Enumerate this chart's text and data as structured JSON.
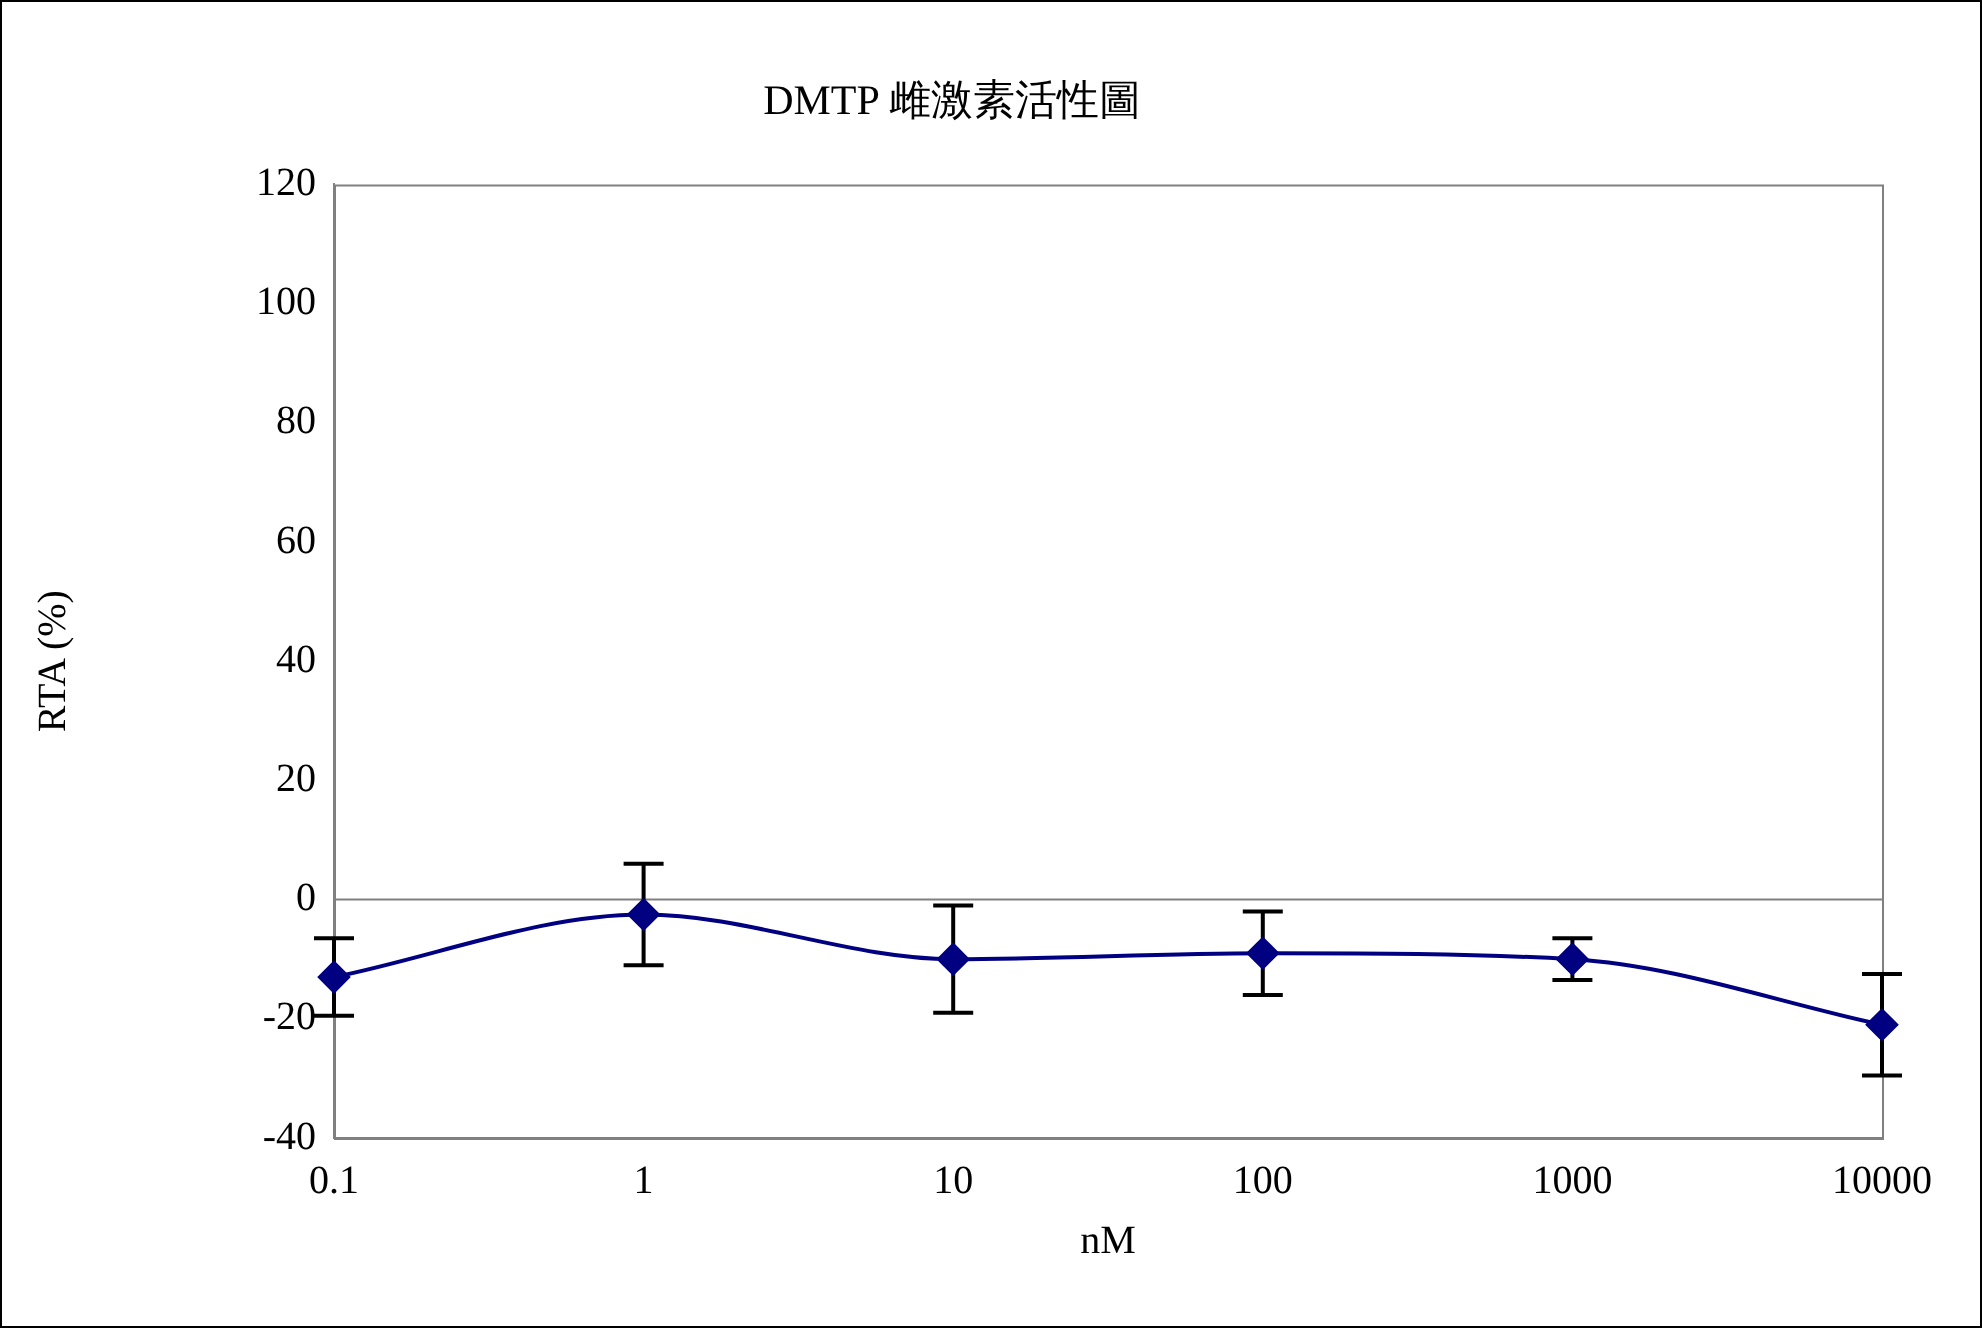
{
  "chart_data": {
    "type": "line",
    "title": "DMTP 雌激素活性圖",
    "xlabel": "nM",
    "ylabel": "RTA (%)",
    "categories": [
      "0.1",
      "1",
      "10",
      "100",
      "1000",
      "10000"
    ],
    "series": [
      {
        "color": "#000080",
        "values": [
          -13,
          -2.5,
          -10,
          -9,
          -10,
          -21
        ],
        "errors": [
          6.5,
          8.5,
          9,
          7,
          3.5,
          8.5
        ]
      }
    ],
    "ref_lines": [
      {
        "axis": "y",
        "value": 0,
        "color": "#808080"
      }
    ],
    "ylim": [
      -40,
      120
    ],
    "yticks": [
      -40,
      -20,
      0,
      20,
      40,
      60,
      80,
      100,
      120
    ],
    "grid": false,
    "legend": false,
    "marker": "diamond",
    "line_style": "solid"
  }
}
